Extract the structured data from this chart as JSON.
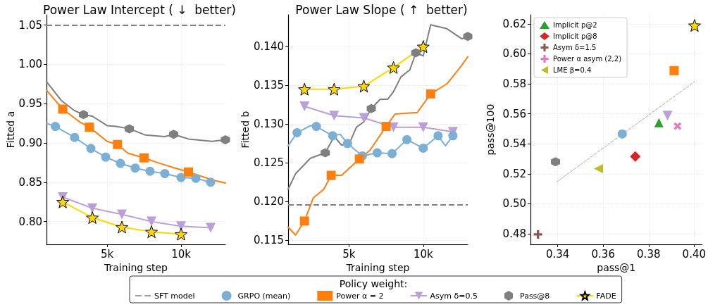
{
  "chart_data": [
    {
      "type": "line",
      "title": "Power Law Intercept ( ↓  better)",
      "xlabel": "Training step",
      "ylabel": "Fitted a",
      "legend_title": "Policy weight:",
      "legend": "bottom",
      "grid": true,
      "xlim": [
        900,
        13000
      ],
      "xticks": [
        {
          "value": 5000,
          "label": "5k"
        },
        {
          "value": 10000,
          "label": "10k"
        }
      ],
      "ylim": [
        0.771,
        1.063
      ],
      "yticks": [
        {
          "value": 0.8,
          "label": "0.80"
        },
        0.85,
        {
          "value": 0.9,
          "label": "0.90"
        },
        0.95,
        {
          "value": 1.0,
          "label": "1.00"
        },
        1.05
      ],
      "ref_lines": [
        {
          "axis": "y",
          "value": 1.05,
          "label": "SFT model",
          "color": "#808080",
          "line_style": "dashed"
        }
      ],
      "series": [
        {
          "color": "#7bafd4",
          "x": [
            900,
            1500,
            2800,
            3900,
            4900,
            5900,
            6900,
            7900,
            8900,
            10000,
            11000,
            12000
          ],
          "values": [
            0.925,
            0.921,
            0.907,
            0.893,
            0.882,
            0.874,
            0.868,
            0.864,
            0.861,
            0.856,
            0.855,
            0.85
          ]
        },
        {
          "type": "scatter",
          "name": "GRPO (mean)",
          "color": "#7bafd4",
          "marker": "circle",
          "x": [
            1500,
            2800,
            3900,
            4900,
            5900,
            6900,
            7900,
            8900,
            10000,
            11000,
            12000
          ],
          "values": [
            0.921,
            0.907,
            0.893,
            0.882,
            0.874,
            0.868,
            0.864,
            0.861,
            0.856,
            0.855,
            0.85
          ]
        },
        {
          "color": "#ff7f0e",
          "x": [
            900,
            2000,
            3200,
            3800,
            5000,
            5700,
            6400,
            7500,
            8400,
            9600,
            10500,
            12100,
            13000
          ],
          "values": [
            0.967,
            0.943,
            0.926,
            0.92,
            0.902,
            0.898,
            0.887,
            0.881,
            0.875,
            0.868,
            0.863,
            0.853,
            0.849
          ]
        },
        {
          "type": "scatter",
          "name": "Power α = 2",
          "color": "#ff7f0e",
          "marker": "square",
          "x": [
            2000,
            3800,
            5700,
            7500,
            10500
          ],
          "values": [
            0.943,
            0.92,
            0.898,
            0.881,
            0.863
          ]
        },
        {
          "name": "Asym δ=0.5",
          "color": "#b9a0d8",
          "marker": "triangle_down",
          "x": [
            2000,
            4000,
            6000,
            8000,
            10000,
            12000
          ],
          "values": [
            0.831,
            0.817,
            0.809,
            0.8,
            0.794,
            0.792
          ]
        },
        {
          "color": "#7f7f7f",
          "x": [
            900,
            1900,
            2800,
            3400,
            4000,
            5000,
            5600,
            6500,
            7600,
            8900,
            9500,
            10500,
            12100,
            13000
          ],
          "values": [
            0.978,
            0.954,
            0.941,
            0.936,
            0.934,
            0.922,
            0.921,
            0.918,
            0.91,
            0.908,
            0.911,
            0.905,
            0.902,
            0.904
          ]
        },
        {
          "type": "scatter",
          "name": "Pass@8",
          "color": "#7f7f7f",
          "x": [
            3400,
            6500,
            9500,
            13000
          ],
          "values": [
            0.936,
            0.918,
            0.911,
            0.904
          ]
        },
        {
          "name": "FADE",
          "color": "#ffd700",
          "marker": "star",
          "x": [
            2000,
            4000,
            6000,
            8000,
            10000
          ],
          "values": [
            0.825,
            0.805,
            0.793,
            0.787,
            0.784
          ]
        }
      ]
    },
    {
      "type": "line",
      "title": "Power Law Slope ( ↑  better)",
      "xlabel": "Training step",
      "ylabel": "Fitted b",
      "grid": true,
      "xlim": [
        900,
        13000
      ],
      "xticks": [
        {
          "value": 5000,
          "label": "5k"
        },
        {
          "value": 10000,
          "label": "10k"
        }
      ],
      "ylim": [
        0.1145,
        0.1441
      ],
      "yticks": [
        0.115,
        {
          "value": 0.12,
          "label": "0.120"
        },
        0.125,
        {
          "value": 0.13,
          "label": "0.130"
        },
        0.135,
        {
          "value": 0.14,
          "label": "0.140"
        }
      ],
      "ref_lines": [
        {
          "axis": "y",
          "value": 0.1196,
          "color": "#808080",
          "line_style": "dashed"
        }
      ],
      "series": [
        {
          "color": "#7bafd4",
          "x": [
            900,
            1500,
            2400,
            2800,
            3900,
            4400,
            4900,
            5900,
            6900,
            7900,
            8900,
            10000,
            11000,
            11500,
            12000
          ],
          "values": [
            0.1272,
            0.1289,
            0.1298,
            0.1297,
            0.1285,
            0.1287,
            0.1275,
            0.1259,
            0.1263,
            0.1262,
            0.128,
            0.1269,
            0.1285,
            0.1272,
            0.1285
          ]
        },
        {
          "type": "scatter",
          "color": "#7bafd4",
          "marker": "circle",
          "x": [
            1500,
            2800,
            3900,
            4900,
            5900,
            6900,
            7900,
            8900,
            10000,
            11000,
            12000
          ],
          "values": [
            0.1289,
            0.1297,
            0.1285,
            0.1275,
            0.1259,
            0.1263,
            0.1262,
            0.128,
            0.1269,
            0.1285,
            0.1285
          ]
        },
        {
          "color": "#ff7f0e",
          "x": [
            900,
            1400,
            2000,
            2600,
            3300,
            3800,
            4500,
            5700,
            6400,
            7500,
            8100,
            9600,
            10500,
            11600,
            12600,
            13000
          ],
          "values": [
            0.1167,
            0.1157,
            0.1175,
            0.1205,
            0.1216,
            0.1234,
            0.1234,
            0.1255,
            0.1266,
            0.1297,
            0.1313,
            0.1315,
            0.1339,
            0.1352,
            0.1376,
            0.1387
          ]
        },
        {
          "type": "scatter",
          "color": "#ff7f0e",
          "marker": "square",
          "x": [
            2000,
            3800,
            5700,
            7500,
            10500
          ],
          "values": [
            0.1175,
            0.1234,
            0.1255,
            0.1297,
            0.1339
          ]
        },
        {
          "color": "#b9a0d8",
          "marker": "triangle_down",
          "x": [
            2000,
            4000,
            6000,
            8000,
            10000,
            12000
          ],
          "values": [
            0.1323,
            0.1311,
            0.1308,
            0.1296,
            0.1296,
            0.129
          ]
        },
        {
          "color": "#7f7f7f",
          "x": [
            900,
            1400,
            2400,
            3400,
            4000,
            4500,
            5000,
            5500,
            6000,
            6500,
            7100,
            7600,
            8000,
            8500,
            9100,
            9500,
            10000,
            10500,
            11600,
            12600,
            13000
          ],
          "values": [
            0.1216,
            0.1236,
            0.1256,
            0.1263,
            0.1284,
            0.1273,
            0.1274,
            0.1296,
            0.1303,
            0.132,
            0.1332,
            0.1332,
            0.1342,
            0.1361,
            0.137,
            0.1392,
            0.1388,
            0.1428,
            0.1423,
            0.141,
            0.1413
          ]
        },
        {
          "type": "scatter",
          "color": "#7f7f7f",
          "x": [
            3400,
            6500,
            9500,
            13000
          ],
          "values": [
            0.1263,
            0.132,
            0.1392,
            0.1413
          ]
        },
        {
          "color": "#ffd700",
          "marker": "star",
          "x": [
            2000,
            4000,
            6000,
            8000,
            10000
          ],
          "values": [
            0.1345,
            0.1345,
            0.1349,
            0.1373,
            0.14
          ]
        }
      ]
    },
    {
      "type": "scatter",
      "xlabel": "pass@1",
      "ylabel": "pass@100",
      "legend": "top left",
      "grid": true,
      "xlim": [
        0.328,
        0.4035
      ],
      "xticks": [
        0.34,
        0.36,
        0.38,
        {
          "value": 0.4,
          "label": "0.40"
        }
      ],
      "ylim": [
        0.473,
        0.626
      ],
      "yticks": [
        0.48,
        {
          "value": 0.5,
          "label": "0.50"
        },
        0.52,
        0.54,
        0.56,
        0.58,
        {
          "value": 0.6,
          "label": "0.60"
        },
        0.62
      ],
      "series": [
        {
          "type": "line",
          "color": "#aaaaaa",
          "line_style": "dashed",
          "x": [
            0.3395,
            0.4002
          ],
          "values": [
            0.5146,
            0.5814
          ]
        },
        {
          "color": "#7f7f7f",
          "x": [
            0.339
          ],
          "values": [
            0.528
          ]
        },
        {
          "color": "#7bafd4",
          "marker": "circle",
          "x": [
            0.3684
          ],
          "values": [
            0.5466
          ]
        },
        {
          "color": "#b9a0d8",
          "marker": "triangle_down",
          "x": [
            0.3883
          ],
          "values": [
            0.5588
          ]
        },
        {
          "color": "#ff7f0e",
          "marker": "square",
          "x": [
            0.3912
          ],
          "values": [
            0.5888
          ]
        },
        {
          "color": "#ffd700",
          "marker": "star",
          "x": [
            0.4002
          ],
          "values": [
            0.6189
          ]
        },
        {
          "name": "Implicit p@2",
          "color": "#2ca02c",
          "marker": "triangle",
          "x": [
            0.3845
          ],
          "values": [
            0.5541
          ]
        },
        {
          "name": "Implicit p@8",
          "color": "#d62728",
          "marker": "diamond",
          "x": [
            0.3741
          ],
          "values": [
            0.5315
          ]
        },
        {
          "name": "Asym δ=1.5",
          "color": "#8c564b",
          "marker": "plus",
          "x": [
            0.3313
          ],
          "values": [
            0.4796
          ]
        },
        {
          "name": "Power α asym (2,2)",
          "color": "#e377c2",
          "marker": "x",
          "x": [
            0.3927
          ],
          "values": [
            0.5518
          ]
        },
        {
          "name": "LME β=0.4",
          "color": "#bcbd22",
          "marker": "triangle_left",
          "x": [
            0.3579
          ],
          "values": [
            0.5235
          ]
        }
      ]
    }
  ]
}
